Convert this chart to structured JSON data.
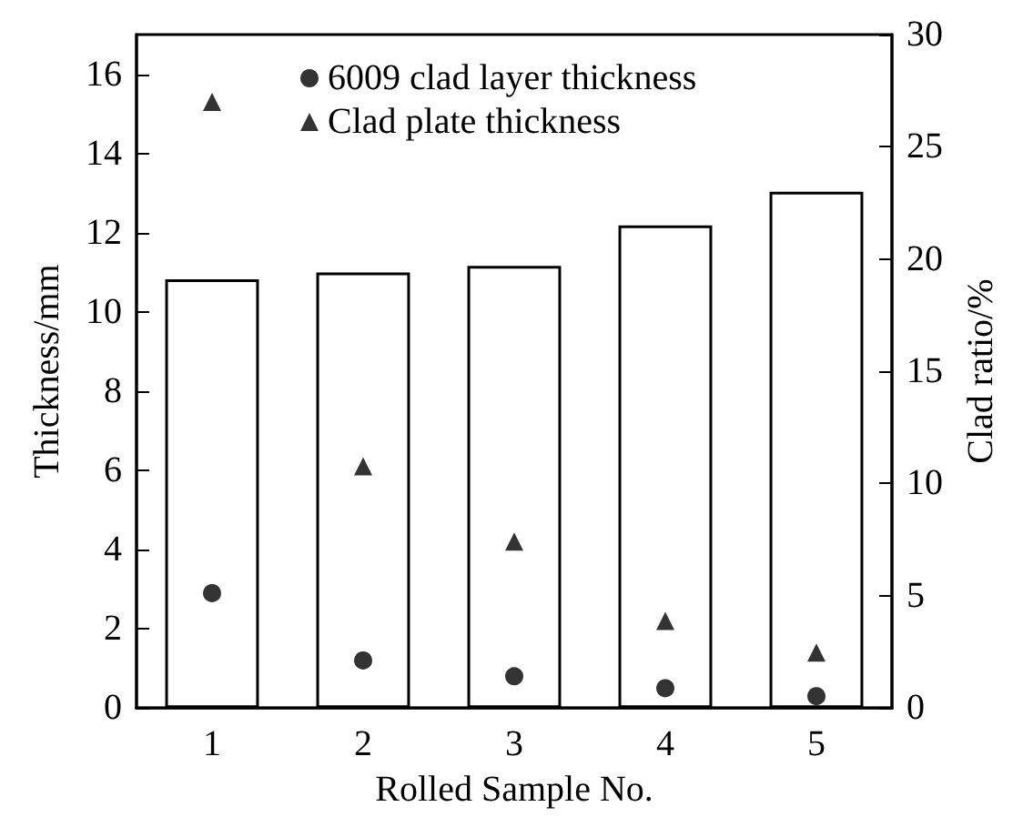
{
  "chart_data": {
    "type": "bar",
    "xlabel": "Rolled Sample No.",
    "ylabel": "Thickness/mm",
    "y2label": "Clad ratio/%",
    "categories": [
      "1",
      "2",
      "3",
      "4",
      "5"
    ],
    "series": [
      {
        "axis": "y2",
        "color": "#ffffff",
        "values": [
          19.1,
          19.4,
          19.7,
          21.5,
          23.0
        ]
      },
      {
        "type": "scatter",
        "name": "6009 clad layer thickness",
        "color": "#000000",
        "marker": "circle",
        "values": [
          2.9,
          1.2,
          0.8,
          0.5,
          0.3
        ]
      },
      {
        "type": "scatter",
        "name": "Clad plate thickness",
        "color": "#000000",
        "marker": "triangle",
        "values": [
          15.3,
          6.1,
          4.2,
          2.2,
          1.4
        ]
      }
    ],
    "ylim": [
      0,
      17
    ],
    "yticks": [
      0,
      2,
      4,
      6,
      8,
      10,
      12,
      14,
      16
    ],
    "y2lim": [
      0,
      30
    ],
    "y2ticks": [
      0,
      5,
      10,
      15,
      20,
      25,
      30
    ],
    "grid": false,
    "legend": "top"
  }
}
